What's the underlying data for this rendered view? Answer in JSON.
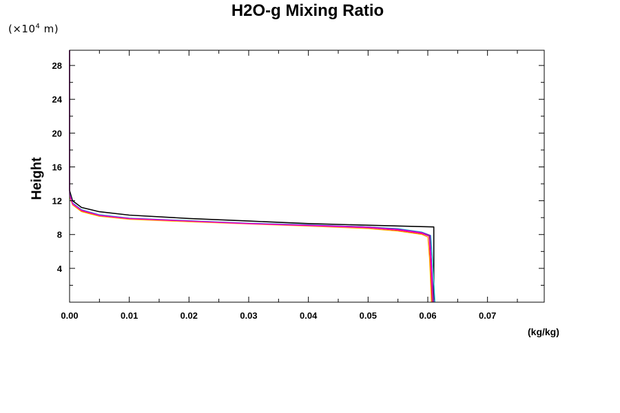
{
  "chart_data": {
    "type": "line",
    "title": "H2O-g Mixing Ratio",
    "y_scale_note": "(×10",
    "y_scale_exp": "4",
    "y_scale_unit": " m)",
    "ylabel": "Height",
    "x_unit": "(kg/kg)",
    "xlim": [
      0,
      0.0795
    ],
    "ylim": [
      0,
      29.8
    ],
    "x_ticks": [
      {
        "value": 0.0,
        "label": "0.00"
      },
      {
        "value": 0.01,
        "label": "0.01"
      },
      {
        "value": 0.02,
        "label": "0.02"
      },
      {
        "value": 0.03,
        "label": "0.03"
      },
      {
        "value": 0.04,
        "label": "0.04"
      },
      {
        "value": 0.05,
        "label": "0.05"
      },
      {
        "value": 0.06,
        "label": "0.06"
      },
      {
        "value": 0.07,
        "label": "0.07"
      }
    ],
    "y_ticks": [
      {
        "value": 4,
        "label": "4"
      },
      {
        "value": 8,
        "label": "8"
      },
      {
        "value": 12,
        "label": "12"
      },
      {
        "value": 16,
        "label": "16"
      },
      {
        "value": 20,
        "label": "20"
      },
      {
        "value": 24,
        "label": "24"
      },
      {
        "value": 28,
        "label": "28"
      }
    ],
    "grid": false,
    "legend": "none",
    "series": [
      {
        "color": "#000000",
        "points": [
          [
            0.061,
            0
          ],
          [
            0.061,
            8.9
          ],
          [
            0.05,
            9.1
          ],
          [
            0.04,
            9.3
          ],
          [
            0.03,
            9.6
          ],
          [
            0.02,
            9.9
          ],
          [
            0.01,
            10.3
          ],
          [
            0.005,
            10.7
          ],
          [
            0.002,
            11.2
          ],
          [
            0.0005,
            12.0
          ],
          [
            0,
            13.2
          ],
          [
            0,
            29.8
          ]
        ]
      },
      {
        "color": "#0000ff",
        "points": [
          [
            0.061,
            0
          ],
          [
            0.0605,
            5
          ],
          [
            0.0603,
            7.8
          ],
          [
            0.059,
            8.2
          ],
          [
            0.055,
            8.6
          ],
          [
            0.05,
            8.9
          ],
          [
            0.04,
            9.1
          ],
          [
            0.03,
            9.3
          ],
          [
            0.02,
            9.6
          ],
          [
            0.01,
            9.9
          ],
          [
            0.005,
            10.3
          ],
          [
            0.002,
            10.9
          ],
          [
            0.0005,
            11.7
          ],
          [
            0,
            12.8
          ]
        ]
      },
      {
        "color": "#ff0000",
        "points": [
          [
            0.0607,
            0
          ],
          [
            0.0604,
            5
          ],
          [
            0.0602,
            7.8
          ],
          [
            0.059,
            8.1
          ],
          [
            0.055,
            8.5
          ],
          [
            0.05,
            8.8
          ],
          [
            0.04,
            9.1
          ],
          [
            0.03,
            9.3
          ],
          [
            0.02,
            9.55
          ],
          [
            0.01,
            9.85
          ],
          [
            0.005,
            10.2
          ],
          [
            0.002,
            10.8
          ],
          [
            0.0005,
            11.6
          ],
          [
            0,
            12.6
          ]
        ]
      },
      {
        "color": "#00cccc",
        "points": [
          [
            0.0612,
            0
          ],
          [
            0.0608,
            5
          ],
          [
            0.0605,
            7.9
          ],
          [
            0.059,
            8.3
          ],
          [
            0.055,
            8.7
          ],
          [
            0.05,
            8.9
          ],
          [
            0.04,
            9.15
          ],
          [
            0.03,
            9.35
          ],
          [
            0.02,
            9.65
          ],
          [
            0.01,
            9.95
          ],
          [
            0.005,
            10.35
          ],
          [
            0.002,
            10.95
          ],
          [
            0.0005,
            11.75
          ],
          [
            0,
            12.9
          ]
        ]
      },
      {
        "color": "#ffaa00",
        "points": [
          [
            0.0606,
            0
          ],
          [
            0.0603,
            5
          ],
          [
            0.06,
            7.7
          ],
          [
            0.059,
            8.0
          ],
          [
            0.055,
            8.4
          ],
          [
            0.05,
            8.7
          ],
          [
            0.04,
            9.0
          ],
          [
            0.03,
            9.25
          ],
          [
            0.02,
            9.5
          ],
          [
            0.01,
            9.8
          ],
          [
            0.005,
            10.15
          ],
          [
            0.002,
            10.7
          ],
          [
            0.0005,
            11.5
          ],
          [
            0,
            12.5
          ]
        ]
      },
      {
        "color": "#00aa00",
        "points": [
          [
            0.0609,
            0
          ],
          [
            0.0606,
            5
          ],
          [
            0.0603,
            7.85
          ],
          [
            0.059,
            8.2
          ],
          [
            0.055,
            8.6
          ],
          [
            0.05,
            8.85
          ],
          [
            0.04,
            9.1
          ],
          [
            0.03,
            9.3
          ],
          [
            0.02,
            9.6
          ],
          [
            0.01,
            9.9
          ],
          [
            0.005,
            10.25
          ],
          [
            0.002,
            10.85
          ],
          [
            0.0005,
            11.65
          ],
          [
            0,
            12.7
          ]
        ]
      },
      {
        "color": "#aa00cc",
        "points": [
          [
            0.061,
            0
          ],
          [
            0.0606,
            5
          ],
          [
            0.0604,
            7.9
          ],
          [
            0.059,
            8.25
          ],
          [
            0.055,
            8.65
          ],
          [
            0.05,
            8.9
          ],
          [
            0.04,
            9.12
          ],
          [
            0.03,
            9.32
          ],
          [
            0.02,
            9.62
          ],
          [
            0.01,
            9.92
          ],
          [
            0.005,
            10.3
          ],
          [
            0.002,
            10.9
          ],
          [
            0.0005,
            11.7
          ],
          [
            0,
            12.85
          ],
          [
            0,
            29.8
          ]
        ]
      },
      {
        "color": "#ff00cc",
        "points": [
          [
            0.0608,
            0
          ],
          [
            0.0605,
            5
          ],
          [
            0.0602,
            7.8
          ],
          [
            0.059,
            8.15
          ],
          [
            0.055,
            8.55
          ],
          [
            0.05,
            8.8
          ],
          [
            0.04,
            9.05
          ],
          [
            0.03,
            9.28
          ],
          [
            0.02,
            9.58
          ],
          [
            0.01,
            9.88
          ],
          [
            0.005,
            10.25
          ],
          [
            0.002,
            10.85
          ],
          [
            0.0005,
            11.6
          ],
          [
            0,
            12.7
          ],
          [
            0,
            29.8
          ]
        ]
      }
    ]
  }
}
